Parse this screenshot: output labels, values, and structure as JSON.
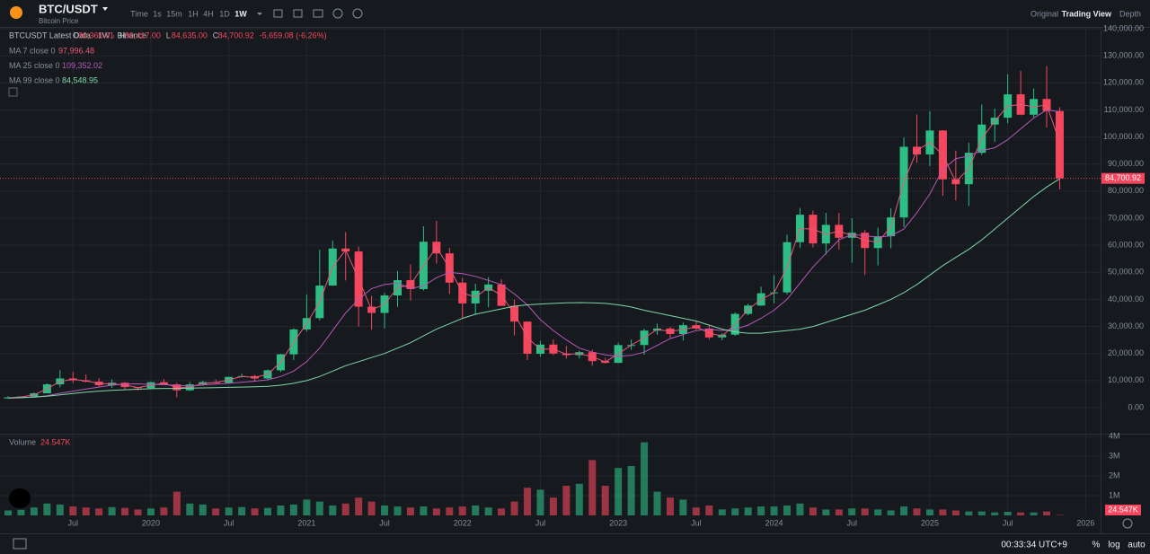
{
  "header": {
    "symbol": "BTC/USDT",
    "subtitle": "Bitcoin Price",
    "intervals": [
      "Time",
      "1s",
      "15m",
      "1H",
      "4H",
      "1D",
      "1W"
    ],
    "views": [
      "Original",
      "Trading View",
      "Depth"
    ]
  },
  "legend": {
    "title": "BTCUSDT Latest Data · 1W · Binance",
    "ohlc": [
      {
        "label": "O",
        "value": "90,360.01"
      },
      {
        "label": "H",
        "value": "90,417.00"
      },
      {
        "label": "L",
        "value": "84,635.00"
      },
      {
        "label": "C",
        "value": "84,700.92"
      }
    ],
    "change": "-5,659.08 (-6.26%)"
  },
  "footer": {
    "time": "00:33:34 UTC+9",
    "buttons": [
      "%",
      "log",
      "auto"
    ]
  },
  "chart_data": {
    "type": "candlestick",
    "up_color": "#2ebd85",
    "down_color": "#f6465d",
    "open": [
      3400,
      3800,
      4100,
      5300,
      8600,
      10800,
      10100,
      9600,
      8300,
      9200,
      7600,
      7200,
      9400,
      8600,
      6400,
      8600,
      9450,
      9140,
      11350,
      11650,
      10780,
      13800,
      19700,
      28900,
      33100,
      45100,
      58800,
      57700,
      37300,
      35000,
      41460,
      47100,
      43800,
      61300,
      57000,
      46200,
      38500,
      43200,
      45500,
      37600,
      31800,
      19900,
      23300,
      20000,
      19400,
      20500,
      17200,
      16540,
      23120,
      23140,
      28470,
      29230,
      27200,
      30470,
      29230,
      25940,
      26960,
      34640,
      37720,
      42280,
      42580,
      61130,
      71280,
      60670,
      67530,
      62770,
      64620,
      58970,
      63330,
      70290,
      96400,
      93570,
      102400,
      84350,
      82550,
      94170,
      104600,
      107130,
      115760,
      108240,
      114050,
      109600
    ],
    "high": [
      4200,
      4100,
      5600,
      9000,
      13800,
      13200,
      12300,
      10900,
      10400,
      9500,
      7700,
      9600,
      10500,
      9200,
      9500,
      10000,
      10400,
      11450,
      12500,
      12100,
      14100,
      19900,
      29300,
      41900,
      58350,
      61800,
      64850,
      59500,
      41300,
      42400,
      50500,
      52900,
      67000,
      69000,
      59000,
      47990,
      45800,
      48200,
      47400,
      40000,
      31900,
      24700,
      25200,
      22800,
      21100,
      21400,
      18400,
      23960,
      25250,
      29200,
      31000,
      29800,
      31400,
      31800,
      30240,
      27500,
      35200,
      38400,
      44700,
      48970,
      63900,
      73780,
      72800,
      71970,
      71980,
      70000,
      65600,
      66500,
      73600,
      99800,
      108350,
      109590,
      102500,
      95000,
      97900,
      112000,
      110500,
      123200,
      124470,
      117900,
      126200,
      111000
    ],
    "low": [
      3400,
      3700,
      4000,
      5300,
      7500,
      9100,
      9300,
      7700,
      7300,
      6500,
      6400,
      6900,
      8400,
      3800,
      6200,
      8100,
      8900,
      8900,
      11100,
      9900,
      10400,
      13200,
      17600,
      28100,
      32300,
      45000,
      47000,
      30000,
      28800,
      29300,
      37300,
      39600,
      43300,
      53250,
      42000,
      32900,
      34300,
      37100,
      37600,
      26700,
      17600,
      18800,
      19500,
      18100,
      18200,
      15500,
      16300,
      16500,
      21350,
      19550,
      26900,
      25800,
      24800,
      28800,
      25160,
      24900,
      26550,
      34100,
      37600,
      38550,
      41880,
      59000,
      59190,
      56550,
      58400,
      53500,
      49000,
      52550,
      58900,
      66800,
      90500,
      89250,
      78250,
      76600,
      74500,
      93400,
      98200,
      105100,
      108000,
      107250,
      103500,
      80600
    ],
    "close": [
      3800,
      4100,
      5300,
      8600,
      10800,
      10100,
      9600,
      8300,
      9200,
      7600,
      7200,
      9400,
      8600,
      6400,
      8600,
      9450,
      9140,
      11350,
      11650,
      10780,
      13800,
      19700,
      28900,
      33100,
      45100,
      58800,
      57700,
      37300,
      35000,
      41460,
      47100,
      43800,
      61300,
      57000,
      46200,
      38500,
      43200,
      45500,
      37600,
      31800,
      19900,
      23300,
      20000,
      19400,
      20500,
      17200,
      16540,
      23120,
      23140,
      28470,
      29230,
      27200,
      30470,
      29230,
      25940,
      26960,
      34640,
      37720,
      42280,
      42580,
      61130,
      71280,
      60670,
      67530,
      62770,
      64620,
      58970,
      63330,
      70290,
      96400,
      93570,
      102400,
      84350,
      82550,
      94170,
      104600,
      107130,
      115760,
      108240,
      114050,
      109600,
      84700.92
    ],
    "last_label": "84,700.92",
    "series": [
      {
        "name": "MA 7 close 0",
        "color": "#e4587a",
        "value_label": "97,996.48",
        "values": [
          3600,
          3950,
          4700,
          6950,
          9700,
          10450,
          9850,
          8950,
          8750,
          8400,
          7400,
          8300,
          9000,
          7500,
          7500,
          9000,
          9300,
          10250,
          11500,
          11200,
          12300,
          16750,
          24300,
          31000,
          39100,
          51950,
          58250,
          47500,
          36150,
          38200,
          44300,
          45450,
          52550,
          59150,
          51600,
          42350,
          40850,
          44350,
          41550,
          34700,
          25850,
          21600,
          21650,
          19700,
          19950,
          18850,
          16870,
          19830,
          23130,
          25800,
          28850,
          28200,
          28830,
          29850,
          27580,
          26450,
          30800,
          36180,
          40000,
          42430,
          51850,
          66200,
          65970,
          64100,
          65150,
          63700,
          61800,
          61150,
          66800,
          83350,
          95000,
          98000,
          93400,
          83450,
          88360,
          99380,
          105860,
          111440,
          112000,
          111150,
          111820,
          97996.48
        ]
      },
      {
        "name": "MA 25 close 0",
        "color": "#b658b8",
        "value_label": "109,352.02",
        "values": [
          3500,
          3650,
          3900,
          4400,
          5300,
          6100,
          6900,
          7600,
          8300,
          8700,
          8800,
          8600,
          8500,
          8200,
          8000,
          8400,
          8700,
          9000,
          9400,
          9800,
          10300,
          11500,
          13500,
          17000,
          22000,
          28500,
          35000,
          40000,
          44000,
          45500,
          46000,
          44000,
          45000,
          48000,
          50000,
          49500,
          48500,
          47000,
          45500,
          42000,
          38000,
          32500,
          28500,
          25000,
          22000,
          20500,
          19500,
          19000,
          19300,
          20500,
          23000,
          25500,
          27000,
          28500,
          29000,
          28500,
          29000,
          30500,
          33000,
          36000,
          40000,
          46000,
          52000,
          57000,
          62000,
          64000,
          63500,
          63000,
          63500,
          66000,
          72000,
          79000,
          88000,
          92000,
          93000,
          95000,
          96000,
          99000,
          103000,
          107000,
          110000,
          109352.02
        ]
      },
      {
        "name": "MA 99 close 0",
        "color": "#7fd6a8",
        "value_label": "84,548.95",
        "values": [
          3500,
          3700,
          3900,
          4200,
          4700,
          5200,
          5700,
          6100,
          6400,
          6600,
          6800,
          7000,
          7100,
          7100,
          7200,
          7300,
          7400,
          7500,
          7600,
          7700,
          7900,
          8300,
          9000,
          10000,
          11500,
          13500,
          15500,
          17000,
          18500,
          20000,
          22000,
          24000,
          26500,
          29000,
          31000,
          33000,
          34500,
          35500,
          36500,
          37500,
          38000,
          38300,
          38500,
          38700,
          38800,
          38700,
          38500,
          38000,
          37200,
          36000,
          35000,
          34000,
          33000,
          32000,
          30500,
          29000,
          28000,
          27500,
          27500,
          28000,
          28500,
          29000,
          30000,
          31500,
          33000,
          34500,
          36000,
          38000,
          40000,
          42500,
          45500,
          49000,
          52500,
          55500,
          58500,
          62000,
          66000,
          70000,
          74000,
          78000,
          81500,
          84548.95
        ]
      }
    ],
    "ylim": [
      0,
      140000
    ],
    "yticks": [
      {
        "value": 0,
        "label": "0.00"
      },
      {
        "value": 10000,
        "label": "10,000.00"
      },
      {
        "value": 20000,
        "label": "20,000.00"
      },
      {
        "value": 30000,
        "label": "30,000.00"
      },
      {
        "value": 40000,
        "label": "40,000.00"
      },
      {
        "value": 50000,
        "label": "50,000.00"
      },
      {
        "value": 60000,
        "label": "60,000.00"
      },
      {
        "value": 70000,
        "label": "70,000.00"
      },
      {
        "value": 80000,
        "label": "80,000.00"
      },
      {
        "value": 90000,
        "label": "90,000.00"
      },
      {
        "value": 100000,
        "label": "100,000.00"
      },
      {
        "value": 110000,
        "label": "110,000.00"
      },
      {
        "value": 120000,
        "label": "120,000.00"
      },
      {
        "value": 130000,
        "label": "130,000.00"
      },
      {
        "value": 140000,
        "label": "140,000.00"
      }
    ],
    "xticks": [
      {
        "value": 5,
        "label": "Jul"
      },
      {
        "value": 11,
        "label": "2020"
      },
      {
        "value": 17,
        "label": "Jul"
      },
      {
        "value": 23,
        "label": "2021"
      },
      {
        "value": 29,
        "label": "Jul"
      },
      {
        "value": 35,
        "label": "2022"
      },
      {
        "value": 41,
        "label": "Jul"
      },
      {
        "value": 47,
        "label": "2023"
      },
      {
        "value": 53,
        "label": "Jul"
      },
      {
        "value": 59,
        "label": "2024"
      },
      {
        "value": 65,
        "label": "Jul"
      },
      {
        "value": 71,
        "label": "2025"
      },
      {
        "value": 77,
        "label": "Jul"
      },
      {
        "value": 83,
        "label": "2026"
      }
    ],
    "grid": true,
    "volume": {
      "name": "Volume",
      "value_label": "24.547K",
      "ylim": [
        0,
        4000000
      ],
      "yticks": [
        {
          "value": 1000000,
          "label": "1M"
        },
        {
          "value": 2000000,
          "label": "2M"
        },
        {
          "value": 3000000,
          "label": "3M"
        },
        {
          "value": 4000000,
          "label": "4M"
        }
      ],
      "values": [
        250000,
        280000,
        400000,
        600000,
        550000,
        450000,
        400000,
        350000,
        420000,
        380000,
        300000,
        350000,
        400000,
        1200000,
        600000,
        550000,
        350000,
        400000,
        420000,
        350000,
        380000,
        500000,
        550000,
        800000,
        700000,
        500000,
        600000,
        900000,
        700000,
        500000,
        450000,
        400000,
        450000,
        350000,
        400000,
        450000,
        500000,
        400000,
        350000,
        700000,
        1400000,
        1300000,
        900000,
        1500000,
        1600000,
        2800000,
        1500000,
        2400000,
        2500000,
        3700000,
        1200000,
        900000,
        800000,
        400000,
        500000,
        300000,
        350000,
        400000,
        450000,
        450000,
        500000,
        600000,
        400000,
        300000,
        300000,
        350000,
        350000,
        300000,
        250000,
        450000,
        350000,
        300000,
        300000,
        250000,
        200000,
        200000,
        150000,
        180000,
        150000,
        150000,
        200000,
        24547
      ]
    }
  }
}
